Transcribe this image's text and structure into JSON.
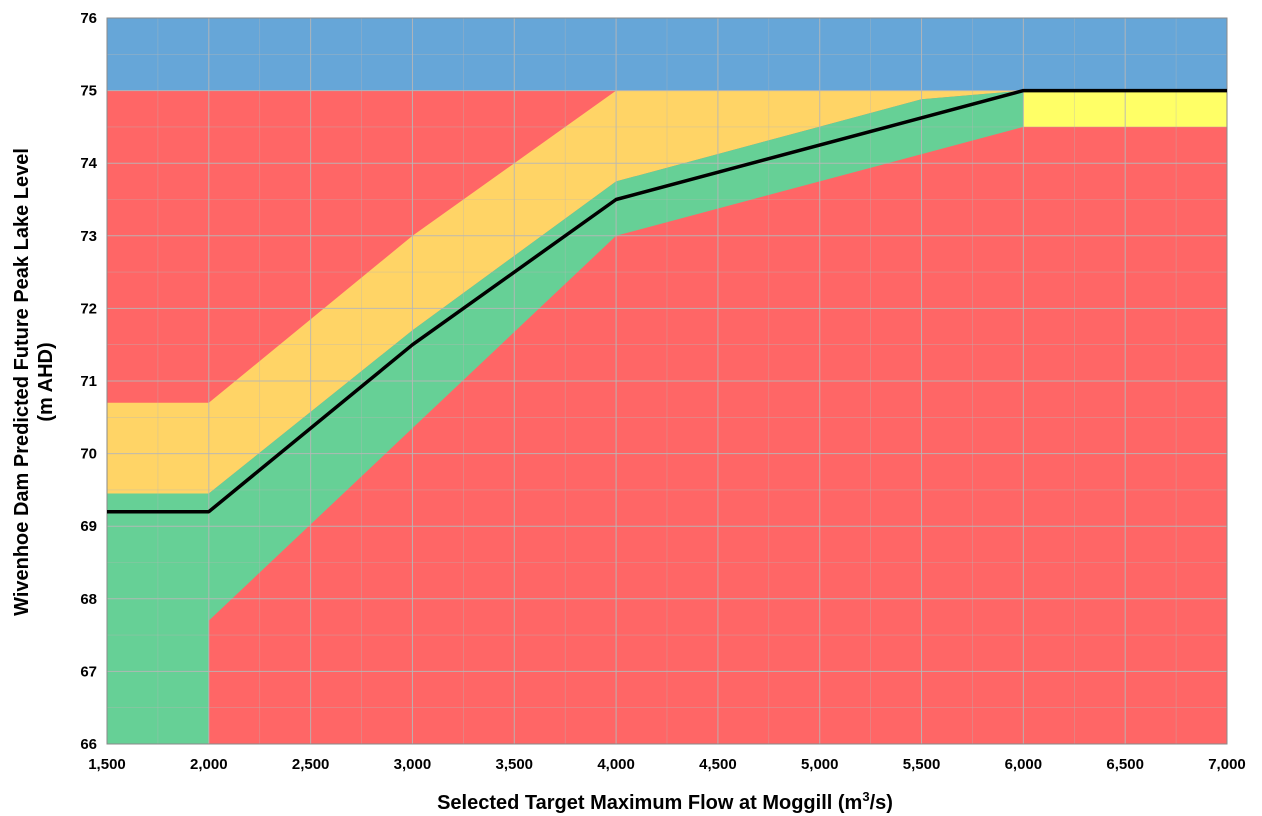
{
  "chart_data": {
    "type": "area",
    "title": "",
    "xlabel": "Selected Target Maximum Flow at Moggill (m³/s)",
    "xlabel_parts": [
      "Selected Target Maximum Flow at Moggill (m",
      "3",
      "/s)"
    ],
    "ylabel_lines": [
      "Wivenhoe Dam Predicted Future Peak Lake Level",
      "(m AHD)"
    ],
    "xlim": [
      1500,
      7000
    ],
    "ylim": [
      66,
      76
    ],
    "x_ticks": [
      1500,
      2000,
      2500,
      3000,
      3500,
      4000,
      4500,
      5000,
      5500,
      6000,
      6500,
      7000
    ],
    "x_tick_labels": [
      "1,500",
      "2,000",
      "2,500",
      "3,000",
      "3,500",
      "4,000",
      "4,500",
      "5,000",
      "5,500",
      "6,000",
      "6,500",
      "7,000"
    ],
    "y_ticks": [
      66,
      67,
      68,
      69,
      70,
      71,
      72,
      73,
      74,
      75,
      76
    ],
    "y_tick_labels": [
      "66",
      "67",
      "68",
      "69",
      "70",
      "71",
      "72",
      "73",
      "74",
      "75",
      "76"
    ],
    "grid": true,
    "legend": "none",
    "colors": {
      "background_red": "#FF6666",
      "top_band_blue": "#66A6D8",
      "amber_band": "#FFD466",
      "green_band": "#66D096",
      "yellow_band": "#FFFF66",
      "target_line": "#000000",
      "grid_line": "#B7B7B7"
    },
    "regions": [
      {
        "id": "top-band",
        "color": "top_band_blue",
        "points": [
          [
            1500,
            75
          ],
          [
            7000,
            75
          ],
          [
            7000,
            76
          ],
          [
            1500,
            76
          ]
        ]
      },
      {
        "id": "amber-band",
        "color": "amber_band",
        "points": [
          [
            1500,
            70.7
          ],
          [
            2000,
            70.7
          ],
          [
            3000,
            73.0
          ],
          [
            4000,
            75.0
          ],
          [
            5750,
            75.0
          ],
          [
            6000,
            75.0
          ],
          [
            5500,
            74.88
          ],
          [
            4000,
            73.75
          ],
          [
            3000,
            71.7
          ],
          [
            2000,
            69.45
          ],
          [
            1500,
            69.45
          ]
        ]
      },
      {
        "id": "green-band",
        "color": "green_band",
        "points": [
          [
            1500,
            69.45
          ],
          [
            2000,
            69.45
          ],
          [
            3000,
            71.7
          ],
          [
            4000,
            73.75
          ],
          [
            5500,
            74.88
          ],
          [
            6000,
            75.0
          ],
          [
            6000,
            74.5
          ],
          [
            4000,
            73.0
          ],
          [
            2000,
            67.7
          ],
          [
            2000,
            66.0
          ],
          [
            1500,
            66.0
          ]
        ]
      },
      {
        "id": "yellow-band",
        "color": "yellow_band",
        "points": [
          [
            6000,
            74.5
          ],
          [
            7000,
            74.5
          ],
          [
            7000,
            75.0
          ],
          [
            6000,
            75.0
          ]
        ]
      }
    ],
    "series": [
      {
        "x": [
          1500,
          2000,
          3000,
          4000,
          6000,
          7000
        ],
        "values": [
          69.2,
          69.2,
          71.5,
          73.5,
          75.0,
          75.0
        ]
      }
    ]
  }
}
